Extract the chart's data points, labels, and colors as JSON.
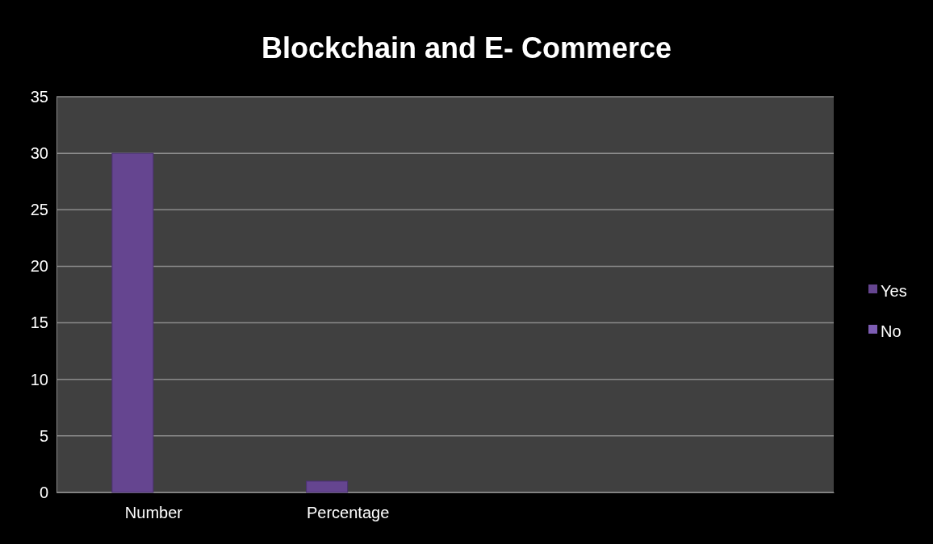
{
  "chart_data": {
    "type": "bar",
    "title": "Blockchain and E- Commerce",
    "categories": [
      "Number",
      "Percentage",
      null,
      null
    ],
    "series": [
      {
        "name": "Yes",
        "color": "#654590",
        "values": [
          30,
          1,
          null,
          null
        ]
      },
      {
        "name": "No",
        "color": "#7d5db3",
        "values": [
          null,
          null,
          null,
          null
        ]
      }
    ],
    "ylim": [
      0,
      35
    ],
    "yticks": [
      0,
      5,
      10,
      15,
      20,
      25,
      30,
      35
    ],
    "grid": "y",
    "legend": "right"
  }
}
